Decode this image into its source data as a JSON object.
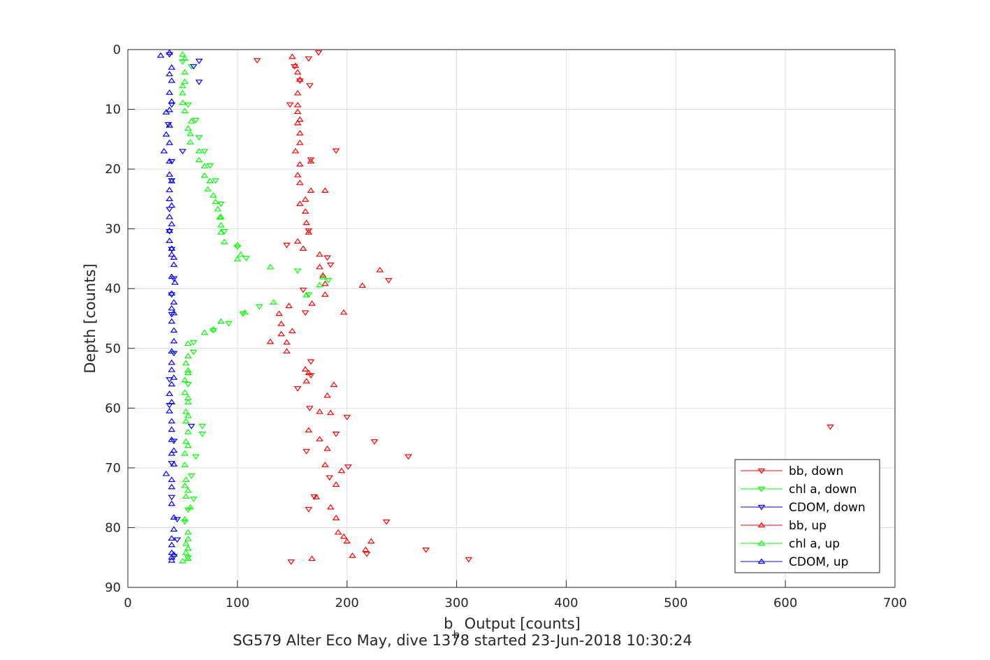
{
  "chart_data": {
    "type": "scatter",
    "title": "SG579 Alter Eco May, dive 1378 started 23-Jun-2018 10:30:24",
    "xlabel_main": "b",
    "xlabel_sub": "b",
    "xlabel_rest": " Output [counts]",
    "ylabel": "Depth [counts]",
    "xlim": [
      0,
      700
    ],
    "ylim": [
      0,
      90
    ],
    "y_reversed": true,
    "grid": true,
    "xticks": [
      "0",
      "100",
      "200",
      "300",
      "400",
      "500",
      "600",
      "700"
    ],
    "yticks": [
      "0",
      "10",
      "20",
      "30",
      "40",
      "50",
      "60",
      "70",
      "80",
      "90"
    ],
    "legend_position": "bottom-right",
    "series": [
      {
        "name": "bb, down",
        "color": "#ff0000",
        "marker": "triangle-down",
        "points": [
          [
            174,
            0.5
          ],
          [
            165,
            1.5
          ],
          [
            118,
            1.8
          ],
          [
            152,
            2.8
          ],
          [
            157,
            5.2
          ],
          [
            166,
            6.0
          ],
          [
            148,
            9.2
          ],
          [
            190,
            16.9
          ],
          [
            167,
            18.4
          ],
          [
            182,
            34.8
          ],
          [
            238,
            38.6
          ],
          [
            145,
            32.7
          ],
          [
            165,
            30.3
          ],
          [
            185,
            36.0
          ],
          [
            160,
            40.2
          ],
          [
            162,
            44.0
          ],
          [
            167,
            52.2
          ],
          [
            167,
            54.5
          ],
          [
            155,
            56.7
          ],
          [
            166,
            60.0
          ],
          [
            200,
            61.5
          ],
          [
            190,
            64.3
          ],
          [
            641,
            63.1
          ],
          [
            225,
            65.6
          ],
          [
            163,
            67.2
          ],
          [
            256,
            68.1
          ],
          [
            201,
            69.8
          ],
          [
            184,
            71.6
          ],
          [
            170,
            74.8
          ],
          [
            165,
            76.9
          ],
          [
            236,
            79.0
          ],
          [
            272,
            83.7
          ],
          [
            218,
            84.4
          ],
          [
            311,
            85.3
          ],
          [
            149,
            85.7
          ]
        ]
      },
      {
        "name": "chl a, down",
        "color": "#00ff00",
        "marker": "triangle-down",
        "points": [
          [
            50,
            2.0
          ],
          [
            58,
            2.8
          ],
          [
            55,
            9.2
          ],
          [
            62,
            11.8
          ],
          [
            65,
            14.7
          ],
          [
            70,
            17.0
          ],
          [
            75,
            19.4
          ],
          [
            80,
            21.9
          ],
          [
            85,
            25.8
          ],
          [
            88,
            30.4
          ],
          [
            100,
            33.0
          ],
          [
            108,
            34.9
          ],
          [
            155,
            37.0
          ],
          [
            183,
            38.6
          ],
          [
            165,
            41.0
          ],
          [
            120,
            43.0
          ],
          [
            105,
            44.2
          ],
          [
            92,
            45.8
          ],
          [
            78,
            47.0
          ],
          [
            60,
            49.0
          ],
          [
            60,
            50.6
          ],
          [
            55,
            56.0
          ],
          [
            68,
            63.0
          ],
          [
            68,
            64.3
          ],
          [
            62,
            68.1
          ],
          [
            58,
            71.3
          ],
          [
            60,
            75.2
          ],
          [
            55,
            77.0
          ],
          [
            52,
            79.0
          ],
          [
            55,
            85.0
          ]
        ]
      },
      {
        "name": "CDOM, down",
        "color": "#0000ff",
        "marker": "triangle-down",
        "points": [
          [
            38,
            0.8
          ],
          [
            65,
            1.9
          ],
          [
            60,
            2.8
          ],
          [
            65,
            5.4
          ],
          [
            40,
            9.2
          ],
          [
            37,
            12.5
          ],
          [
            50,
            17.0
          ],
          [
            40,
            18.7
          ],
          [
            40,
            21.9
          ],
          [
            38,
            26.7
          ],
          [
            38,
            30.4
          ],
          [
            40,
            33.4
          ],
          [
            42,
            38.3
          ],
          [
            40,
            41.0
          ],
          [
            40,
            44.3
          ],
          [
            42,
            50.8
          ],
          [
            38,
            55.2
          ],
          [
            38,
            59.5
          ],
          [
            58,
            63.0
          ],
          [
            42,
            65.5
          ],
          [
            40,
            69.2
          ],
          [
            40,
            74.9
          ],
          [
            45,
            78.6
          ],
          [
            45,
            82.0
          ],
          [
            42,
            84.8
          ]
        ]
      },
      {
        "name": "bb, up",
        "color": "#ff0000",
        "marker": "triangle-up",
        "points": [
          [
            150,
            1.2
          ],
          [
            153,
            2.7
          ],
          [
            155,
            3.8
          ],
          [
            157,
            5.0
          ],
          [
            155,
            7.3
          ],
          [
            155,
            9.3
          ],
          [
            155,
            10.4
          ],
          [
            157,
            11.7
          ],
          [
            155,
            12.3
          ],
          [
            157,
            14.0
          ],
          [
            157,
            15.6
          ],
          [
            153,
            17.0
          ],
          [
            167,
            18.7
          ],
          [
            157,
            19.2
          ],
          [
            155,
            21.0
          ],
          [
            157,
            22.3
          ],
          [
            180,
            23.6
          ],
          [
            167,
            23.6
          ],
          [
            157,
            25.8
          ],
          [
            162,
            25.1
          ],
          [
            162,
            27.1
          ],
          [
            163,
            29.0
          ],
          [
            165,
            30.6
          ],
          [
            155,
            32.1
          ],
          [
            160,
            33.3
          ],
          [
            175,
            34.3
          ],
          [
            175,
            36.4
          ],
          [
            178,
            37.8
          ],
          [
            230,
            36.9
          ],
          [
            214,
            39.5
          ],
          [
            180,
            39.2
          ],
          [
            180,
            41.0
          ],
          [
            168,
            42.5
          ],
          [
            147,
            42.9
          ],
          [
            197,
            44.0
          ],
          [
            138,
            44.2
          ],
          [
            140,
            45.9
          ],
          [
            150,
            47.1
          ],
          [
            140,
            47.6
          ],
          [
            130,
            48.9
          ],
          [
            145,
            49.0
          ],
          [
            145,
            50.5
          ],
          [
            162,
            53.5
          ],
          [
            165,
            54.1
          ],
          [
            163,
            55.5
          ],
          [
            188,
            56.1
          ],
          [
            182,
            57.9
          ],
          [
            175,
            60.6
          ],
          [
            185,
            60.8
          ],
          [
            165,
            63.7
          ],
          [
            175,
            65.2
          ],
          [
            182,
            66.8
          ],
          [
            180,
            69.5
          ],
          [
            195,
            70.5
          ],
          [
            190,
            72.8
          ],
          [
            172,
            74.9
          ],
          [
            185,
            76.6
          ],
          [
            190,
            78.4
          ],
          [
            192,
            80.8
          ],
          [
            197,
            81.5
          ],
          [
            200,
            82.3
          ],
          [
            222,
            82.3
          ],
          [
            217,
            83.7
          ],
          [
            205,
            84.7
          ],
          [
            168,
            85.2
          ]
        ]
      },
      {
        "name": "chl a, up",
        "color": "#00ff00",
        "marker": "triangle-up",
        "points": [
          [
            50,
            0.8
          ],
          [
            52,
            1.5
          ],
          [
            52,
            3.8
          ],
          [
            52,
            5.4
          ],
          [
            50,
            6.1
          ],
          [
            50,
            7.3
          ],
          [
            50,
            8.9
          ],
          [
            52,
            10.3
          ],
          [
            58,
            12.0
          ],
          [
            55,
            13.2
          ],
          [
            57,
            14.1
          ],
          [
            57,
            15.5
          ],
          [
            65,
            17.0
          ],
          [
            65,
            18.5
          ],
          [
            70,
            19.5
          ],
          [
            70,
            21.1
          ],
          [
            75,
            22.0
          ],
          [
            73,
            23.4
          ],
          [
            78,
            24.4
          ],
          [
            80,
            25.5
          ],
          [
            82,
            26.7
          ],
          [
            85,
            28.0
          ],
          [
            84,
            28.1
          ],
          [
            85,
            29.4
          ],
          [
            85,
            30.6
          ],
          [
            88,
            32.2
          ],
          [
            100,
            32.7
          ],
          [
            103,
            34.3
          ],
          [
            100,
            35.1
          ],
          [
            130,
            36.4
          ],
          [
            178,
            38.1
          ],
          [
            175,
            39.4
          ],
          [
            163,
            41.1
          ],
          [
            133,
            42.3
          ],
          [
            107,
            44.0
          ],
          [
            85,
            45.5
          ],
          [
            78,
            46.8
          ],
          [
            70,
            47.4
          ],
          [
            55,
            49.2
          ],
          [
            55,
            51.3
          ],
          [
            53,
            52.5
          ],
          [
            55,
            53.7
          ],
          [
            55,
            54.1
          ],
          [
            52,
            55.3
          ],
          [
            52,
            57.4
          ],
          [
            55,
            58.3
          ],
          [
            55,
            59.0
          ],
          [
            53,
            60.6
          ],
          [
            55,
            61.3
          ],
          [
            53,
            62.2
          ],
          [
            55,
            64.0
          ],
          [
            53,
            65.6
          ],
          [
            55,
            66.3
          ],
          [
            52,
            67.6
          ],
          [
            52,
            69.5
          ],
          [
            53,
            72.0
          ],
          [
            52,
            73.0
          ],
          [
            55,
            73.8
          ],
          [
            53,
            74.8
          ],
          [
            57,
            76.6
          ],
          [
            52,
            78.6
          ],
          [
            55,
            80.8
          ],
          [
            55,
            81.9
          ],
          [
            53,
            82.7
          ],
          [
            55,
            83.5
          ],
          [
            53,
            84.2
          ],
          [
            55,
            85.2
          ],
          [
            50,
            85.6
          ]
        ]
      },
      {
        "name": "CDOM, up",
        "color": "#0000ff",
        "marker": "triangle-up",
        "points": [
          [
            38,
            0.5
          ],
          [
            30,
            1.0
          ],
          [
            40,
            3.0
          ],
          [
            38,
            4.1
          ],
          [
            40,
            5.2
          ],
          [
            38,
            7.2
          ],
          [
            40,
            8.7
          ],
          [
            38,
            10.1
          ],
          [
            35,
            10.5
          ],
          [
            38,
            12.7
          ],
          [
            35,
            14.2
          ],
          [
            38,
            15.6
          ],
          [
            33,
            17.0
          ],
          [
            38,
            18.7
          ],
          [
            38,
            20.9
          ],
          [
            40,
            22.0
          ],
          [
            38,
            23.5
          ],
          [
            38,
            25.0
          ],
          [
            40,
            26.1
          ],
          [
            38,
            28.0
          ],
          [
            40,
            29.2
          ],
          [
            38,
            30.3
          ],
          [
            38,
            32.0
          ],
          [
            40,
            33.3
          ],
          [
            40,
            34.3
          ],
          [
            42,
            34.8
          ],
          [
            42,
            36.0
          ],
          [
            40,
            38.0
          ],
          [
            43,
            39.0
          ],
          [
            40,
            40.8
          ],
          [
            42,
            42.3
          ],
          [
            40,
            43.3
          ],
          [
            42,
            44.1
          ],
          [
            40,
            45.5
          ],
          [
            42,
            47.0
          ],
          [
            42,
            48.8
          ],
          [
            40,
            50.5
          ],
          [
            40,
            52.4
          ],
          [
            40,
            53.6
          ],
          [
            42,
            54.9
          ],
          [
            40,
            56.0
          ],
          [
            38,
            57.6
          ],
          [
            40,
            59.0
          ],
          [
            38,
            60.5
          ],
          [
            40,
            62.2
          ],
          [
            40,
            63.6
          ],
          [
            40,
            65.3
          ],
          [
            42,
            67.1
          ],
          [
            40,
            67.6
          ],
          [
            42,
            69.4
          ],
          [
            35,
            71.0
          ],
          [
            40,
            72.0
          ],
          [
            40,
            73.2
          ],
          [
            40,
            76.0
          ],
          [
            42,
            78.3
          ],
          [
            42,
            80.3
          ],
          [
            40,
            81.8
          ],
          [
            40,
            82.9
          ],
          [
            40,
            84.2
          ],
          [
            42,
            84.5
          ],
          [
            40,
            85.0
          ],
          [
            40,
            85.5
          ]
        ]
      }
    ]
  }
}
